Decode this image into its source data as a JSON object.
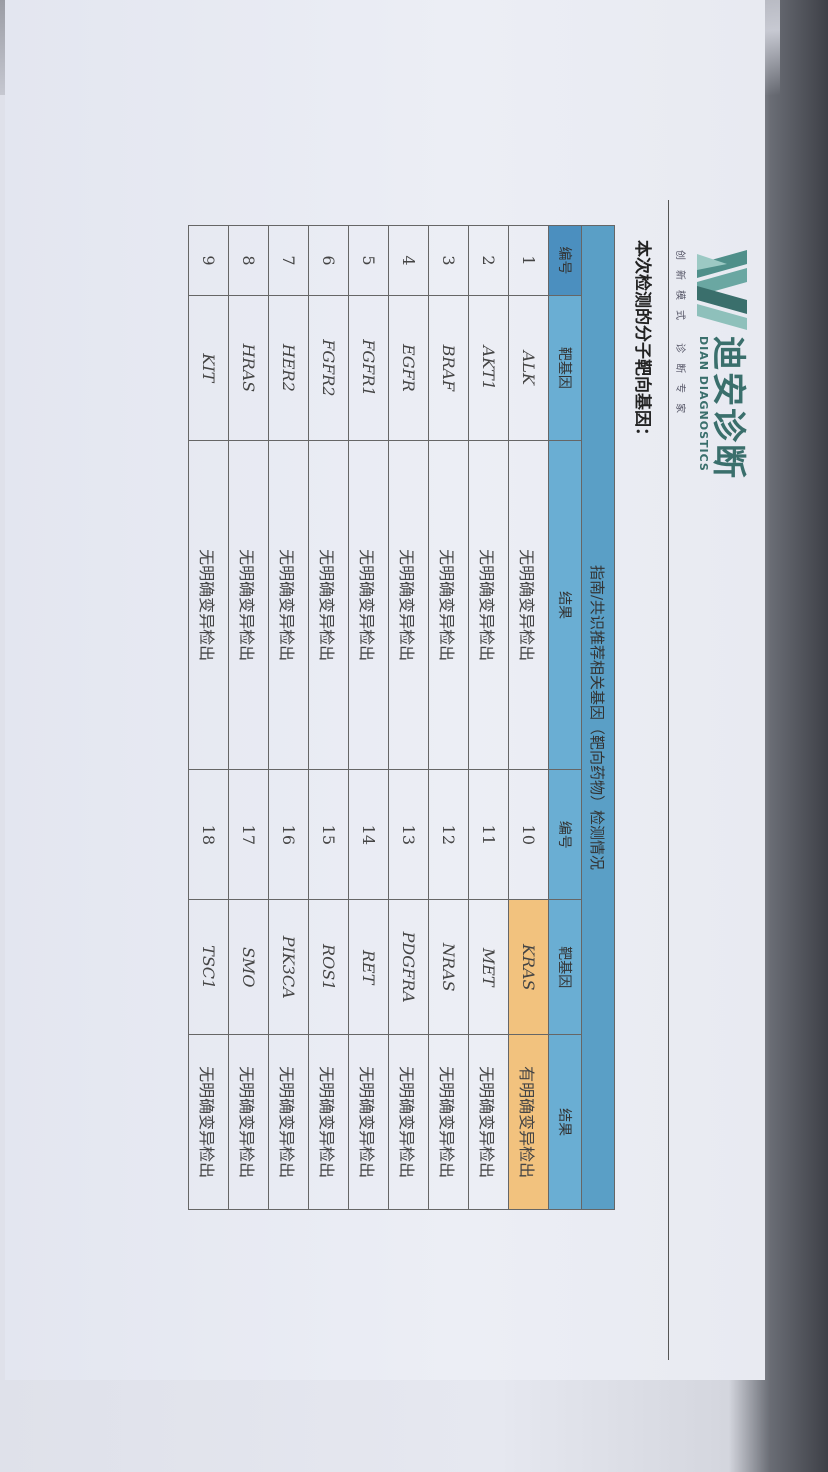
{
  "logo": {
    "name_cn": "迪安诊断",
    "name_en": "DIAN DIAGNOSTICS",
    "slogan": "创新模式 诊断专家"
  },
  "title": "本次检测的分子靶向基因：",
  "table": {
    "caption": "指南/共识推荐相关基因（靶向药物）检测情况",
    "headers": [
      "编号",
      "靶基因",
      "结果",
      "编号",
      "靶基因",
      "结果"
    ],
    "highlight_color": "#f2c27e",
    "header_color": "#5a9fc6",
    "rows": [
      {
        "left": {
          "no": "1",
          "gene": "ALK",
          "result": "无明确变异检出"
        },
        "right": {
          "no": "10",
          "gene": "KRAS",
          "result": "有明确变异检出",
          "highlight": true
        }
      },
      {
        "left": {
          "no": "2",
          "gene": "AKT1",
          "result": "无明确变异检出"
        },
        "right": {
          "no": "11",
          "gene": "MET",
          "result": "无明确变异检出"
        }
      },
      {
        "left": {
          "no": "3",
          "gene": "BRAF",
          "result": "无明确变异检出"
        },
        "right": {
          "no": "12",
          "gene": "NRAS",
          "result": "无明确变异检出"
        }
      },
      {
        "left": {
          "no": "4",
          "gene": "EGFR",
          "result": "无明确变异检出"
        },
        "right": {
          "no": "13",
          "gene": "PDGFRA",
          "result": "无明确变异检出"
        }
      },
      {
        "left": {
          "no": "5",
          "gene": "FGFR1",
          "result": "无明确变异检出"
        },
        "right": {
          "no": "14",
          "gene": "RET",
          "result": "无明确变异检出"
        }
      },
      {
        "left": {
          "no": "6",
          "gene": "FGFR2",
          "result": "无明确变异检出"
        },
        "right": {
          "no": "15",
          "gene": "ROS1",
          "result": "无明确变异检出"
        }
      },
      {
        "left": {
          "no": "7",
          "gene": "HER2",
          "result": "无明确变异检出"
        },
        "right": {
          "no": "16",
          "gene": "PIK3CA",
          "result": "无明确变异检出"
        }
      },
      {
        "left": {
          "no": "8",
          "gene": "HRAS",
          "result": "无明确变异检出"
        },
        "right": {
          "no": "17",
          "gene": "SMO",
          "result": "无明确变异检出"
        }
      },
      {
        "left": {
          "no": "9",
          "gene": "KIT",
          "result": "无明确变异检出"
        },
        "right": {
          "no": "18",
          "gene": "TSC1",
          "result": "无明确变异检出"
        }
      }
    ]
  }
}
